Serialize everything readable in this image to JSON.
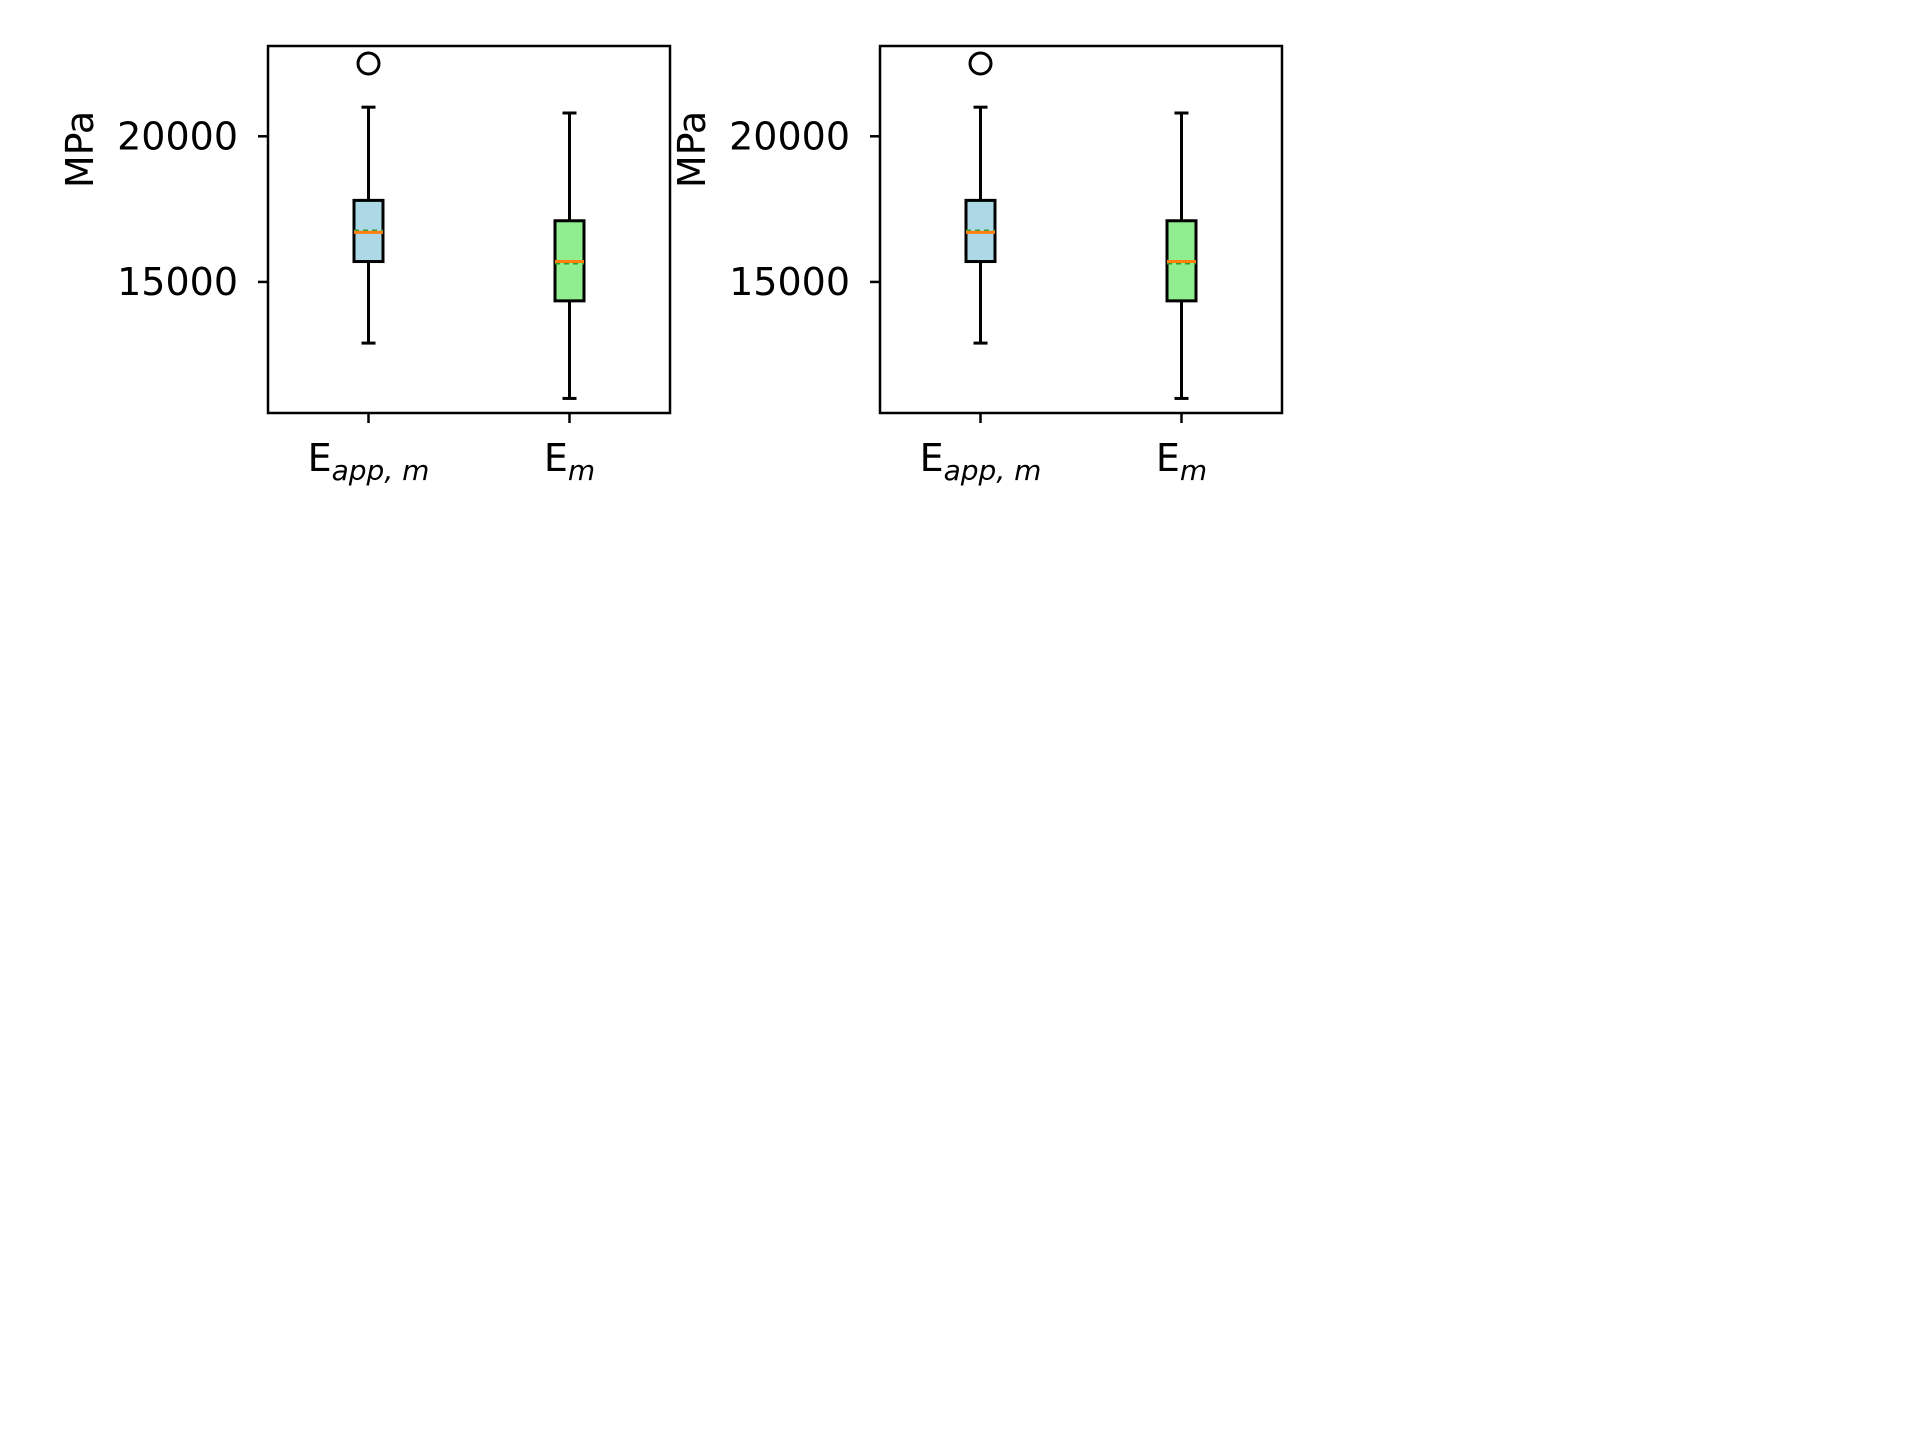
{
  "chart_data": [
    {
      "type": "box",
      "ylabel": "MPa",
      "yticks": [
        15000,
        20000
      ],
      "ylim": [
        10500,
        23100
      ],
      "categories": [
        {
          "base": "E",
          "sub": "app, m"
        },
        {
          "base": "E",
          "sub": "m"
        }
      ],
      "boxes": [
        {
          "whisker_low": 12900,
          "q1": 15700,
          "median": 16700,
          "mean": 16750,
          "q3": 17800,
          "whisker_high": 21000,
          "outliers": [
            22500
          ],
          "fill": "#add8e6"
        },
        {
          "whisker_low": 11000,
          "q1": 14350,
          "median": 15700,
          "mean": 15650,
          "q3": 17100,
          "whisker_high": 20800,
          "outliers": [],
          "fill": "#90ee90"
        }
      ]
    },
    {
      "type": "box",
      "ylabel": "MPa",
      "yticks": [
        15000,
        20000
      ],
      "ylim": [
        10500,
        23100
      ],
      "categories": [
        {
          "base": "E",
          "sub": "app, m"
        },
        {
          "base": "E",
          "sub": "m"
        }
      ],
      "boxes": [
        {
          "whisker_low": 12900,
          "q1": 15700,
          "median": 16700,
          "mean": 16750,
          "q3": 17800,
          "whisker_high": 21000,
          "outliers": [
            22500
          ],
          "fill": "#add8e6"
        },
        {
          "whisker_low": 11000,
          "q1": 14350,
          "median": 15700,
          "mean": 15650,
          "q3": 17100,
          "whisker_high": 20800,
          "outliers": [],
          "fill": "#90ee90"
        }
      ]
    }
  ],
  "colors": {
    "median_line": "#ff7f0e",
    "mean_line": "#2ca02c",
    "edge": "#000000"
  }
}
